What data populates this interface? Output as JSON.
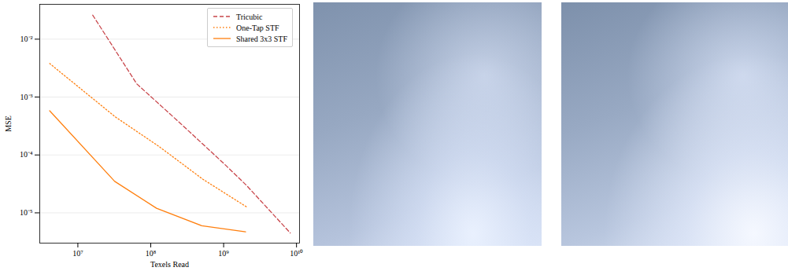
{
  "chart_data": {
    "type": "line",
    "x_label": "Texels Read",
    "y_label": "MSE",
    "log": true,
    "grid": true,
    "legend": "upper right",
    "xlim": [
      3000000,
      11000000000
    ],
    "ylim": [
      3e-06,
      0.04
    ],
    "xticks": [
      {
        "value": 10000000,
        "label": "10⁷"
      },
      {
        "value": 100000000,
        "label": "10⁸"
      },
      {
        "value": 1000000000,
        "label": "10⁹"
      },
      {
        "value": 10000000000,
        "label": "10¹⁰"
      }
    ],
    "yticks": [
      {
        "value": 1e-05,
        "label": "10⁻⁵"
      },
      {
        "value": 0.0001,
        "label": "10⁻⁴"
      },
      {
        "value": 0.001,
        "label": "10⁻³"
      },
      {
        "value": 0.01,
        "label": "10⁻²"
      }
    ],
    "series": [
      {
        "name": "Tricubic",
        "color": "#c8454a",
        "line_style": "dashed",
        "x": [
          16000000,
          64000000,
          256000000,
          1020000000,
          2050000000,
          8200000000
        ],
        "values": [
          0.026,
          0.0017,
          0.00035,
          7e-05,
          3e-05,
          4.5e-06
        ]
      },
      {
        "name": "One-Tap STF",
        "color": "#ff7f0e",
        "line_style": "dotted",
        "x": [
          4100000,
          33000000,
          130000000,
          520000000,
          2100000000
        ],
        "values": [
          0.0038,
          0.00045,
          0.00014,
          3.8e-05,
          1.25e-05
        ]
      },
      {
        "name": "Shared 3x3 STF",
        "color": "#ff7f0e",
        "line_style": "solid",
        "x": [
          4100000,
          32000000,
          120000000,
          500000000,
          2000000000
        ],
        "values": [
          0.00058,
          3.5e-05,
          1.2e-05,
          6e-06,
          4.7e-06
        ]
      }
    ]
  }
}
